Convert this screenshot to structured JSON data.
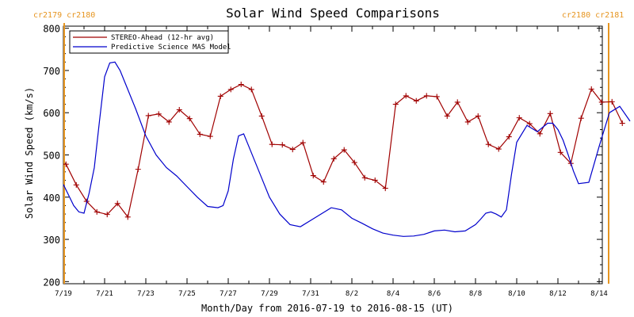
{
  "chart_data": {
    "type": "line",
    "title": "Solar Wind Speed Comparisons",
    "xlabel": "Month/Day from 2016-07-19 to 2016-08-15 (UT)",
    "ylabel": "Solar Wind Speed (km/s)",
    "ylim": [
      195,
      805
    ],
    "xlim": [
      "2016-07-19",
      "2016-08-15"
    ],
    "x_tick_labels": [
      "7/19",
      "7/21",
      "7/23",
      "7/25",
      "7/27",
      "7/29",
      "7/31",
      "8/2",
      "8/4",
      "8/6",
      "8/8",
      "8/10",
      "8/12",
      "8/14"
    ],
    "y_ticks": [
      200,
      300,
      400,
      500,
      600,
      700,
      800
    ],
    "legend_position": "top-left",
    "carrington_labels": {
      "left": "cr2179 cr2180",
      "right": "cr2180 cr2181",
      "left_boundary": "2016-07-19",
      "right_boundary": "2016-08-15",
      "color": "#e69520"
    },
    "series": [
      {
        "name": "STEREO-Ahead (12-hr avg)",
        "color": "#a00000",
        "marker": "plus",
        "x": [
          "2016-07-19T03:00",
          "2016-07-19T15:00",
          "2016-07-20T03:00",
          "2016-07-20T15:00",
          "2016-07-21T03:00",
          "2016-07-21T15:00",
          "2016-07-22T03:00",
          "2016-07-22T15:00",
          "2016-07-23T03:00",
          "2016-07-23T15:00",
          "2016-07-24T03:00",
          "2016-07-24T15:00",
          "2016-07-25T03:00",
          "2016-07-25T15:00",
          "2016-07-26T03:00",
          "2016-07-26T15:00",
          "2016-07-27T03:00",
          "2016-07-27T15:00",
          "2016-07-28T03:00",
          "2016-07-28T15:00",
          "2016-07-29T03:00",
          "2016-07-29T15:00",
          "2016-07-30T03:00",
          "2016-07-30T15:00",
          "2016-07-31T03:00",
          "2016-07-31T15:00",
          "2016-08-01T03:00",
          "2016-08-01T15:00",
          "2016-08-02T03:00",
          "2016-08-02T15:00",
          "2016-08-03T03:00",
          "2016-08-03T15:00",
          "2016-08-04T03:00",
          "2016-08-04T15:00",
          "2016-08-05T03:00",
          "2016-08-05T15:00",
          "2016-08-06T03:00",
          "2016-08-06T15:00",
          "2016-08-07T03:00",
          "2016-08-07T15:00",
          "2016-08-08T03:00",
          "2016-08-08T15:00",
          "2016-08-09T03:00",
          "2016-08-09T15:00",
          "2016-08-10T03:00",
          "2016-08-10T15:00",
          "2016-08-11T03:00",
          "2016-08-11T15:00",
          "2016-08-12T03:00",
          "2016-08-12T15:00",
          "2016-08-13T03:00",
          "2016-08-13T15:00",
          "2016-08-14T03:00",
          "2016-08-14T15:00",
          "2016-08-15T03:00"
        ],
        "values": [
          478,
          429,
          390,
          365,
          359,
          385,
          353,
          466,
          593,
          597,
          578,
          607,
          586,
          549,
          544,
          639,
          655,
          667,
          655,
          592,
          525,
          524,
          513,
          529,
          451,
          436,
          491,
          512,
          482,
          446,
          440,
          421,
          620,
          640,
          628,
          640,
          638,
          592,
          625,
          578,
          592,
          525,
          514,
          543,
          588,
          574,
          550,
          598,
          506,
          480,
          587,
          656,
          625,
          626,
          575
        ]
      },
      {
        "name": "Predictive Science MAS Model",
        "color": "#0000cc",
        "x": [
          "2016-07-19T00:00",
          "2016-07-19T06:00",
          "2016-07-19T12:00",
          "2016-07-19T18:00",
          "2016-07-20T00:00",
          "2016-07-20T06:00",
          "2016-07-20T12:00",
          "2016-07-20T18:00",
          "2016-07-21T00:00",
          "2016-07-21T06:00",
          "2016-07-21T12:00",
          "2016-07-21T18:00",
          "2016-07-22T00:00",
          "2016-07-22T12:00",
          "2016-07-23T00:00",
          "2016-07-23T12:00",
          "2016-07-24T00:00",
          "2016-07-24T12:00",
          "2016-07-25T00:00",
          "2016-07-25T12:00",
          "2016-07-26T00:00",
          "2016-07-26T12:00",
          "2016-07-26T18:00",
          "2016-07-27T00:00",
          "2016-07-27T06:00",
          "2016-07-27T12:00",
          "2016-07-27T18:00",
          "2016-07-28T00:00",
          "2016-07-28T12:00",
          "2016-07-29T00:00",
          "2016-07-29T12:00",
          "2016-07-30T00:00",
          "2016-07-30T12:00",
          "2016-07-31T00:00",
          "2016-07-31T12:00",
          "2016-08-01T00:00",
          "2016-08-01T12:00",
          "2016-08-02T00:00",
          "2016-08-02T12:00",
          "2016-08-03T00:00",
          "2016-08-03T12:00",
          "2016-08-04T00:00",
          "2016-08-04T12:00",
          "2016-08-05T00:00",
          "2016-08-05T12:00",
          "2016-08-06T00:00",
          "2016-08-06T12:00",
          "2016-08-07T00:00",
          "2016-08-07T12:00",
          "2016-08-08T00:00",
          "2016-08-08T06:00",
          "2016-08-08T12:00",
          "2016-08-08T18:00",
          "2016-08-09T00:00",
          "2016-08-09T06:00",
          "2016-08-09T12:00",
          "2016-08-09T18:00",
          "2016-08-10T00:00",
          "2016-08-10T12:00",
          "2016-08-11T00:00",
          "2016-08-11T06:00",
          "2016-08-11T12:00",
          "2016-08-11T18:00",
          "2016-08-12T00:00",
          "2016-08-12T06:00",
          "2016-08-12T12:00",
          "2016-08-12T18:00",
          "2016-08-13T00:00",
          "2016-08-13T12:00",
          "2016-08-14T00:00",
          "2016-08-14T12:00",
          "2016-08-15T00:00",
          "2016-08-15T12:00"
        ],
        "values": [
          430,
          405,
          380,
          365,
          362,
          410,
          470,
          580,
          685,
          718,
          720,
          700,
          670,
          610,
          545,
          500,
          470,
          450,
          425,
          400,
          378,
          375,
          380,
          415,
          490,
          545,
          550,
          520,
          460,
          400,
          360,
          335,
          330,
          345,
          360,
          375,
          370,
          350,
          338,
          325,
          315,
          310,
          307,
          308,
          312,
          320,
          322,
          318,
          320,
          335,
          348,
          362,
          365,
          360,
          353,
          370,
          455,
          530,
          570,
          555,
          565,
          575,
          575,
          560,
          535,
          500,
          462,
          432,
          435,
          520,
          600,
          615,
          580
        ]
      }
    ]
  }
}
